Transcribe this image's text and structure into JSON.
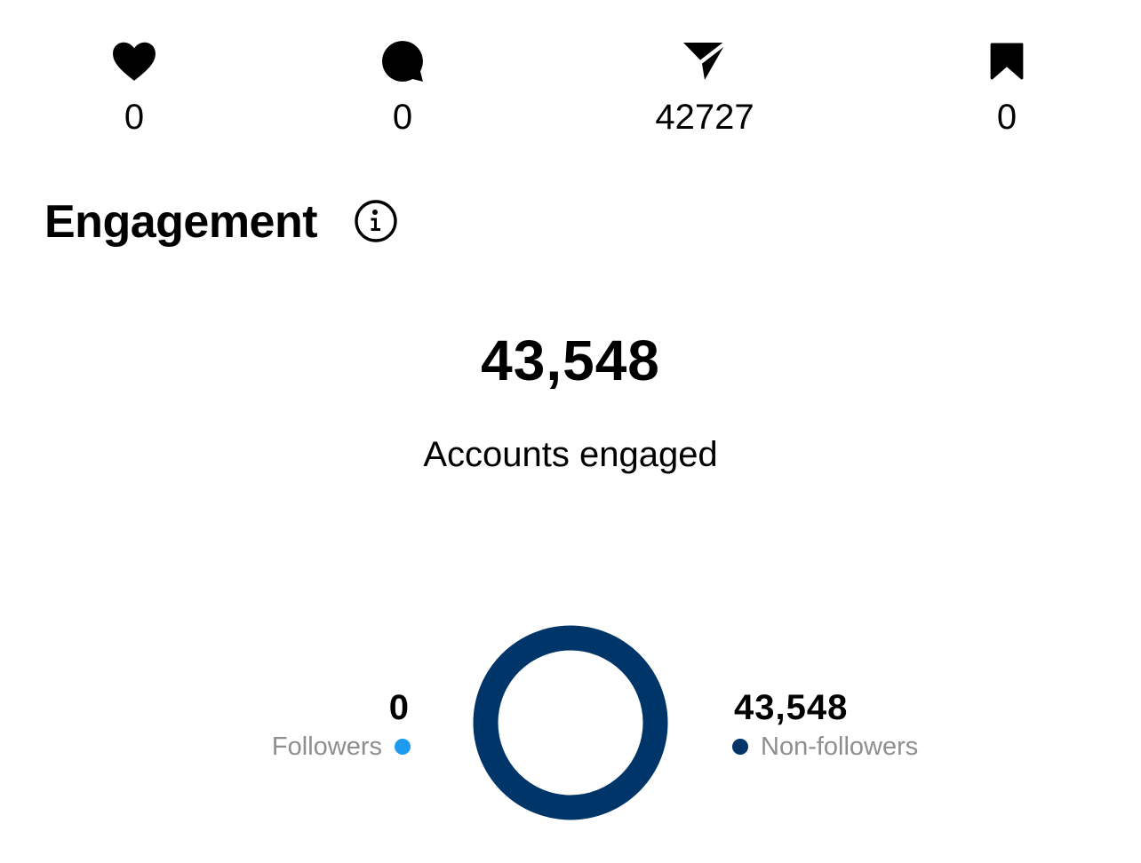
{
  "stats": {
    "likes": {
      "icon": "heart-icon",
      "value": "0"
    },
    "comments": {
      "icon": "comment-icon",
      "value": "0"
    },
    "shares": {
      "icon": "send-icon",
      "value": "42727"
    },
    "saves": {
      "icon": "bookmark-icon",
      "value": "0"
    }
  },
  "engagement": {
    "title": "Engagement",
    "info_icon": "info-icon",
    "accounts_engaged_value": "43,548",
    "accounts_engaged_label": "Accounts engaged"
  },
  "breakdown": {
    "followers": {
      "value": "0",
      "label": "Followers",
      "color": "#1e9bf0"
    },
    "non_followers": {
      "value": "43,548",
      "label": "Non-followers",
      "color": "#003569"
    }
  },
  "colors": {
    "followers": "#1e9bf0",
    "non_followers": "#003569",
    "legend_text": "#8e8e8e"
  }
}
